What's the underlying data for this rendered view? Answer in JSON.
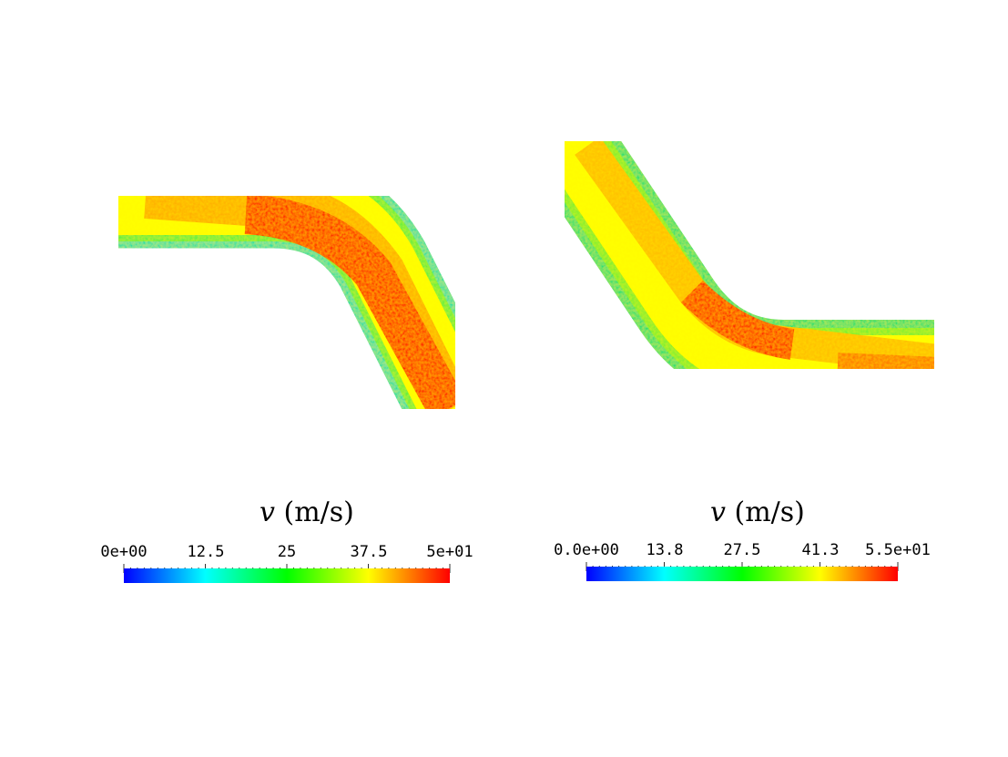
{
  "panels": [
    {
      "id": "left",
      "variable_symbol": "v",
      "variable_unit": "(m/s)",
      "colorbar": {
        "min": 0,
        "max": 50,
        "tick_labels": [
          "0e+00",
          "12.5",
          "25",
          "37.5",
          "5e+01"
        ]
      }
    },
    {
      "id": "right",
      "variable_symbol": "v",
      "variable_unit": "(m/s)",
      "colorbar": {
        "min": 0,
        "max": 55,
        "tick_labels": [
          "0.0e+00",
          "13.8",
          "27.5",
          "41.3",
          "5.5e+01"
        ]
      }
    }
  ],
  "colormap": [
    "#0000ff",
    "#00ffff",
    "#00ff00",
    "#ffff00",
    "#ff0000"
  ]
}
